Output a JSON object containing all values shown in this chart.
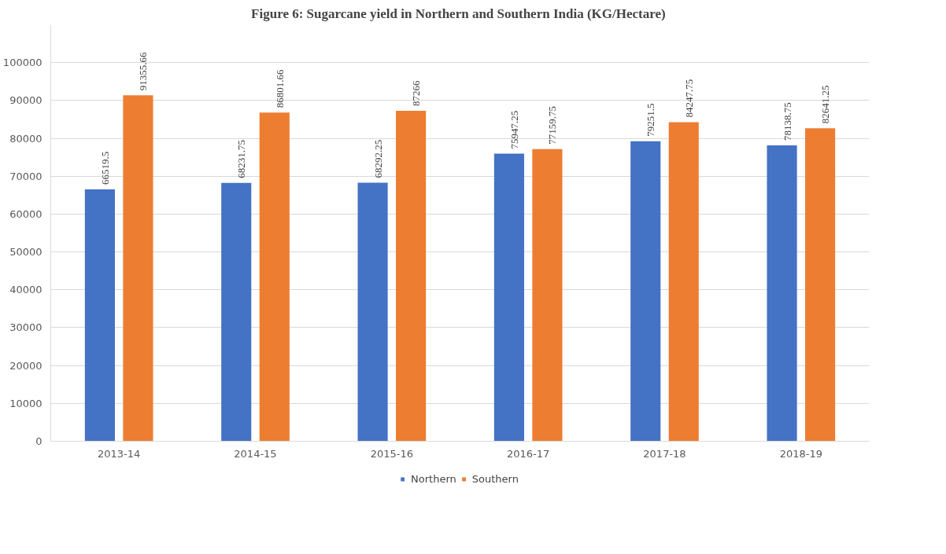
{
  "chart_data": {
    "type": "bar",
    "title": "Figure 6: Sugarcane yield in Northern and Southern India  (KG/Hectare)",
    "categories": [
      "2013-14",
      "2014-15",
      "2015-16",
      "2016-17",
      "2017-18",
      "2018-19"
    ],
    "series": [
      {
        "name": "Northern",
        "color": "#4472c4",
        "values": [
          66519.5,
          68231.75,
          68292.25,
          75947.25,
          79251.5,
          78138.75
        ]
      },
      {
        "name": "Southern",
        "color": "#ed7d31",
        "values": [
          91355.66,
          86801.66,
          87266,
          77159.75,
          84247.75,
          82641.25
        ]
      }
    ],
    "ylim": [
      0,
      110000
    ],
    "yticks": [
      0,
      10000,
      20000,
      30000,
      40000,
      50000,
      60000,
      70000,
      80000,
      90000,
      100000
    ],
    "grid": "y",
    "legend": "bottom",
    "data_labels": true
  }
}
